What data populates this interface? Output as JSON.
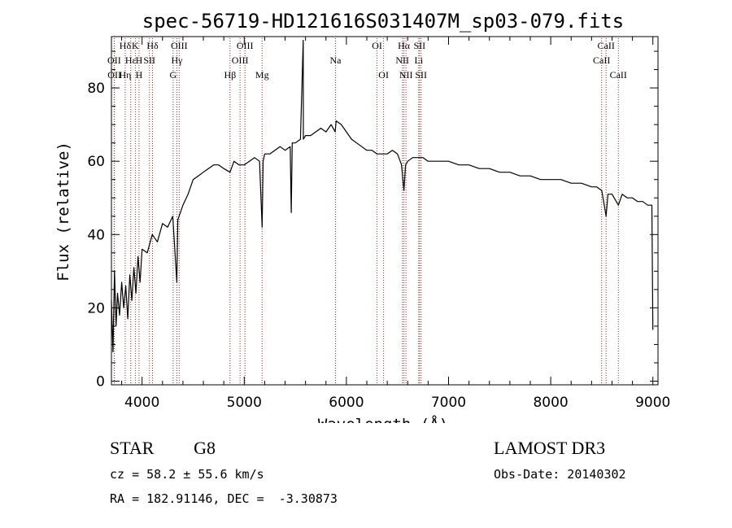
{
  "chart_data": {
    "type": "line",
    "title": "spec-56719-HD121616S031407M_sp03-079.fits",
    "xlabel": "Wavelength (Å)",
    "ylabel": "Flux (relative)",
    "xlim": [
      3700,
      9050
    ],
    "ylim": [
      -1,
      94
    ],
    "xticks": [
      4000,
      5000,
      6000,
      7000,
      8000,
      9000
    ],
    "yticks": [
      0,
      20,
      40,
      60,
      80
    ],
    "grid": false,
    "line_color": "#000000",
    "line_marker_color": "#b22222",
    "series": [
      {
        "name": "flux",
        "x": [
          3700,
          3715,
          3730,
          3745,
          3760,
          3780,
          3800,
          3820,
          3840,
          3860,
          3880,
          3900,
          3920,
          3940,
          3960,
          3980,
          4000,
          4050,
          4100,
          4150,
          4200,
          4250,
          4300,
          4340,
          4350,
          4400,
          4450,
          4500,
          4550,
          4600,
          4650,
          4700,
          4750,
          4800,
          4861,
          4900,
          4950,
          5000,
          5050,
          5100,
          5150,
          5175,
          5185,
          5200,
          5250,
          5300,
          5350,
          5400,
          5450,
          5460,
          5470,
          5500,
          5550,
          5577,
          5579,
          5600,
          5650,
          5700,
          5750,
          5800,
          5850,
          5890,
          5900,
          5950,
          6000,
          6050,
          6100,
          6150,
          6200,
          6250,
          6300,
          6350,
          6400,
          6450,
          6500,
          6540,
          6563,
          6580,
          6600,
          6650,
          6700,
          6750,
          6800,
          6850,
          6900,
          6950,
          7000,
          7100,
          7200,
          7300,
          7400,
          7500,
          7600,
          7700,
          7800,
          7900,
          8000,
          8100,
          8200,
          8300,
          8400,
          8450,
          8500,
          8542,
          8560,
          8600,
          8662,
          8700,
          8750,
          8800,
          8850,
          8900,
          8950,
          8990,
          9000
        ],
        "y": [
          22,
          8,
          30,
          15,
          24,
          18,
          27,
          20,
          26,
          17,
          29,
          22,
          31,
          24,
          34,
          27,
          36,
          35,
          40,
          38,
          43,
          42,
          45,
          27,
          44,
          48,
          51,
          55,
          56,
          57,
          58,
          59,
          59,
          58,
          57,
          60,
          59,
          59,
          60,
          61,
          60,
          42,
          60,
          62,
          62,
          63,
          64,
          63,
          64,
          46,
          65,
          65,
          66,
          93,
          66,
          67,
          67,
          68,
          69,
          68,
          70,
          68,
          71,
          70,
          68,
          66,
          65,
          64,
          63,
          63,
          62,
          62,
          62,
          63,
          62,
          59,
          52,
          59,
          60,
          61,
          61,
          61,
          60,
          60,
          60,
          60,
          60,
          59,
          59,
          58,
          58,
          57,
          57,
          56,
          56,
          55,
          55,
          55,
          54,
          54,
          53,
          53,
          52,
          45,
          51,
          51,
          48,
          51,
          50,
          50,
          49,
          49,
          48,
          48,
          14
        ]
      }
    ],
    "line_ids": [
      {
        "label": "Hδ",
        "wavelength": 3835,
        "row": 0
      },
      {
        "label": "OII",
        "wavelength": 3727,
        "row": 1
      },
      {
        "label": "OII",
        "wavelength": 3729,
        "row": 2
      },
      {
        "label": "Hε",
        "wavelength": 3889,
        "row": 1
      },
      {
        "label": "Hη",
        "wavelength": 3835,
        "row": 2
      },
      {
        "label": "K",
        "wavelength": 3934,
        "row": 0
      },
      {
        "label": "H",
        "wavelength": 3970,
        "row": 1
      },
      {
        "label": "H",
        "wavelength": 3970,
        "row": 2
      },
      {
        "label": "Hδ",
        "wavelength": 4102,
        "row": 0
      },
      {
        "label": "SII",
        "wavelength": 4072,
        "row": 1
      },
      {
        "label": "OIII",
        "wavelength": 4363,
        "row": 0
      },
      {
        "label": "Hγ",
        "wavelength": 4341,
        "row": 1
      },
      {
        "label": "G",
        "wavelength": 4304,
        "row": 2
      },
      {
        "label": "Hβ",
        "wavelength": 4861,
        "row": 2
      },
      {
        "label": "OIII",
        "wavelength": 5007,
        "row": 0
      },
      {
        "label": "OIII",
        "wavelength": 4959,
        "row": 1
      },
      {
        "label": "Mg",
        "wavelength": 5175,
        "row": 2
      },
      {
        "label": "Na",
        "wavelength": 5893,
        "row": 1
      },
      {
        "label": "OI",
        "wavelength": 6300,
        "row": 0
      },
      {
        "label": "OI",
        "wavelength": 6364,
        "row": 2
      },
      {
        "label": "Hα",
        "wavelength": 6563,
        "row": 0
      },
      {
        "label": "SII",
        "wavelength": 6716,
        "row": 0
      },
      {
        "label": "NII",
        "wavelength": 6548,
        "row": 1
      },
      {
        "label": "Li",
        "wavelength": 6708,
        "row": 1
      },
      {
        "label": "NII",
        "wavelength": 6583,
        "row": 2
      },
      {
        "label": "SII",
        "wavelength": 6731,
        "row": 2
      },
      {
        "label": "CaII",
        "wavelength": 8542,
        "row": 0
      },
      {
        "label": "CaII",
        "wavelength": 8498,
        "row": 1
      },
      {
        "label": "CaII",
        "wavelength": 8662,
        "row": 2
      }
    ]
  },
  "info": {
    "object_class": "STAR",
    "subclass": "G8",
    "survey": "LAMOST DR3",
    "redshift_line": "cz = 58.2 ± 55.6 km/s",
    "obs_date_line": "Obs-Date: 20140302",
    "coords_line": "RA = 182.91146, DEC =  -3.30873"
  }
}
